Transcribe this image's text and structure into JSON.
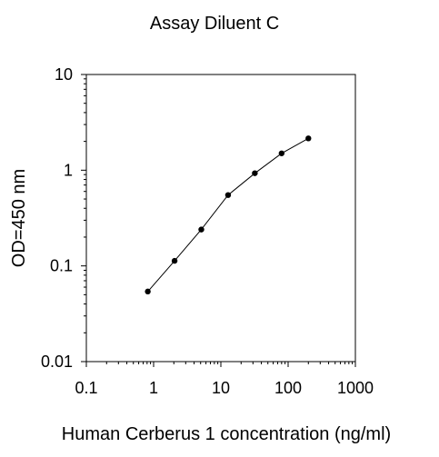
{
  "chart_data": {
    "type": "line",
    "title": "Assay Diluent C",
    "xlabel": "Human  Cerberus 1 concentration (ng/ml)",
    "ylabel": "OD=450 nm",
    "xscale": "log",
    "yscale": "log",
    "xlim": [
      0.1,
      1000
    ],
    "ylim": [
      0.01,
      10
    ],
    "xticks": [
      "0.1",
      "1",
      "10",
      "100",
      "1000"
    ],
    "yticks": [
      "10",
      "1",
      "0.1",
      "0.01"
    ],
    "grid": false,
    "legend": "none",
    "series": [
      {
        "x": [
          0.82,
          2.05,
          5.12,
          12.8,
          32,
          80,
          200
        ],
        "y": [
          0.054,
          0.113,
          0.24,
          0.55,
          0.93,
          1.5,
          2.15
        ]
      }
    ]
  },
  "colors": {
    "line": "#000000",
    "marker": "#000000",
    "axis": "#000000",
    "background": "#ffffff"
  }
}
